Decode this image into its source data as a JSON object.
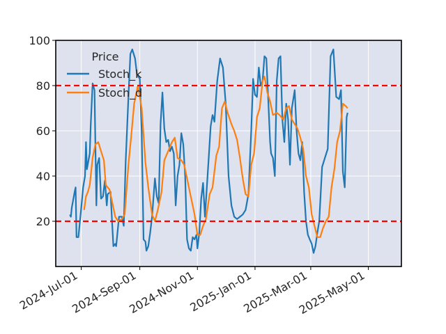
{
  "chart_data": {
    "type": "line",
    "title": "",
    "xlabel": "",
    "ylabel": "",
    "ylim": [
      0,
      100
    ],
    "xlim": [
      "2024-06-04",
      "2025-06-05"
    ],
    "yticks": [
      20,
      40,
      60,
      80,
      100
    ],
    "xticks": [
      {
        "date": "2024-07-01",
        "label": "2024-Jul-01"
      },
      {
        "date": "2024-09-01",
        "label": "2024-Sep-01"
      },
      {
        "date": "2024-11-01",
        "label": "2024-Nov-01"
      },
      {
        "date": "2025-01-01",
        "label": "2025-Jan-01"
      },
      {
        "date": "2025-03-01",
        "label": "2025-Mar-01"
      },
      {
        "date": "2025-05-01",
        "label": "2025-May-01"
      }
    ],
    "grid": true,
    "background": "#dde2ee",
    "legend": {
      "title": "Price",
      "position": "top-left"
    },
    "reference_lines": [
      {
        "y": 80,
        "color": "#ff0000",
        "style": "dashed"
      },
      {
        "y": 20,
        "color": "#ff0000",
        "style": "dashed"
      }
    ],
    "series": [
      {
        "name": "Stoch_k",
        "color": "#1f77b4",
        "points": [
          [
            "2024-06-19",
            23
          ],
          [
            "2024-06-20",
            22
          ],
          [
            "2024-06-21",
            26
          ],
          [
            "2024-06-24",
            33
          ],
          [
            "2024-06-25",
            35
          ],
          [
            "2024-06-26",
            13
          ],
          [
            "2024-06-28",
            13
          ],
          [
            "2024-07-01",
            26
          ],
          [
            "2024-07-03",
            35
          ],
          [
            "2024-07-05",
            40
          ],
          [
            "2024-07-06",
            55
          ],
          [
            "2024-07-07",
            43
          ],
          [
            "2024-07-10",
            50
          ],
          [
            "2024-07-11",
            62
          ],
          [
            "2024-07-13",
            81
          ],
          [
            "2024-07-15",
            78
          ],
          [
            "2024-07-17",
            27
          ],
          [
            "2024-07-18",
            45
          ],
          [
            "2024-07-20",
            48
          ],
          [
            "2024-07-22",
            30
          ],
          [
            "2024-07-24",
            31
          ],
          [
            "2024-07-26",
            38
          ],
          [
            "2024-07-28",
            27
          ],
          [
            "2024-07-29",
            32
          ],
          [
            "2024-08-01",
            33
          ],
          [
            "2024-08-03",
            17
          ],
          [
            "2024-08-04",
            9
          ],
          [
            "2024-08-06",
            10
          ],
          [
            "2024-08-07",
            9
          ],
          [
            "2024-08-10",
            22
          ],
          [
            "2024-08-13",
            22
          ],
          [
            "2024-08-15",
            18
          ],
          [
            "2024-08-17",
            46
          ],
          [
            "2024-08-20",
            75
          ],
          [
            "2024-08-22",
            94
          ],
          [
            "2024-08-24",
            96
          ],
          [
            "2024-08-27",
            92
          ],
          [
            "2024-08-29",
            85
          ],
          [
            "2024-09-01",
            83
          ],
          [
            "2024-09-03",
            60
          ],
          [
            "2024-09-05",
            12
          ],
          [
            "2024-09-07",
            11
          ],
          [
            "2024-09-08",
            7
          ],
          [
            "2024-09-10",
            9
          ],
          [
            "2024-09-12",
            15
          ],
          [
            "2024-09-14",
            22
          ],
          [
            "2024-09-17",
            39
          ],
          [
            "2024-09-19",
            31
          ],
          [
            "2024-09-21",
            28
          ],
          [
            "2024-09-23",
            63
          ],
          [
            "2024-09-25",
            77
          ],
          [
            "2024-09-27",
            61
          ],
          [
            "2024-09-29",
            55
          ],
          [
            "2024-10-01",
            56
          ],
          [
            "2024-10-03",
            51
          ],
          [
            "2024-10-05",
            53
          ],
          [
            "2024-10-07",
            50
          ],
          [
            "2024-10-09",
            27
          ],
          [
            "2024-10-11",
            40
          ],
          [
            "2024-10-13",
            45
          ],
          [
            "2024-10-15",
            59
          ],
          [
            "2024-10-17",
            54
          ],
          [
            "2024-10-19",
            40
          ],
          [
            "2024-10-21",
            12
          ],
          [
            "2024-10-23",
            8
          ],
          [
            "2024-10-25",
            7
          ],
          [
            "2024-10-27",
            13
          ],
          [
            "2024-10-29",
            12
          ],
          [
            "2024-10-31",
            14
          ],
          [
            "2024-11-01",
            8
          ],
          [
            "2024-11-03",
            15
          ],
          [
            "2024-11-05",
            30
          ],
          [
            "2024-11-07",
            37
          ],
          [
            "2024-11-09",
            22
          ],
          [
            "2024-11-11",
            35
          ],
          [
            "2024-11-13",
            48
          ],
          [
            "2024-11-15",
            62
          ],
          [
            "2024-11-17",
            67
          ],
          [
            "2024-11-19",
            64
          ],
          [
            "2024-11-22",
            82
          ],
          [
            "2024-11-25",
            92
          ],
          [
            "2024-11-28",
            88
          ],
          [
            "2024-12-01",
            72
          ],
          [
            "2024-12-04",
            40
          ],
          [
            "2024-12-07",
            27
          ],
          [
            "2024-12-10",
            22
          ],
          [
            "2024-12-13",
            21
          ],
          [
            "2024-12-16",
            22
          ],
          [
            "2024-12-19",
            23
          ],
          [
            "2024-12-22",
            25
          ],
          [
            "2024-12-25",
            32
          ],
          [
            "2024-12-28",
            60
          ],
          [
            "2024-12-30",
            83
          ],
          [
            "2025-01-01",
            76
          ],
          [
            "2025-01-03",
            75
          ],
          [
            "2025-01-05",
            88
          ],
          [
            "2025-01-07",
            80
          ],
          [
            "2025-01-09",
            82
          ],
          [
            "2025-01-11",
            93
          ],
          [
            "2025-01-13",
            92
          ],
          [
            "2025-01-15",
            74
          ],
          [
            "2025-01-17",
            55
          ],
          [
            "2025-01-18",
            50
          ],
          [
            "2025-01-20",
            48
          ],
          [
            "2025-01-22",
            40
          ],
          [
            "2025-01-24",
            82
          ],
          [
            "2025-01-26",
            92
          ],
          [
            "2025-01-28",
            93
          ],
          [
            "2025-01-30",
            65
          ],
          [
            "2025-02-01",
            55
          ],
          [
            "2025-02-03",
            72
          ],
          [
            "2025-02-05",
            65
          ],
          [
            "2025-02-07",
            45
          ],
          [
            "2025-02-09",
            70
          ],
          [
            "2025-02-12",
            78
          ],
          [
            "2025-02-14",
            60
          ],
          [
            "2025-02-16",
            50
          ],
          [
            "2025-02-18",
            47
          ],
          [
            "2025-02-20",
            55
          ],
          [
            "2025-02-22",
            33
          ],
          [
            "2025-02-24",
            20
          ],
          [
            "2025-02-26",
            14
          ],
          [
            "2025-02-28",
            12
          ],
          [
            "2025-03-02",
            10
          ],
          [
            "2025-03-04",
            6
          ],
          [
            "2025-03-06",
            9
          ],
          [
            "2025-03-08",
            15
          ],
          [
            "2025-03-10",
            20
          ],
          [
            "2025-03-13",
            44
          ],
          [
            "2025-03-16",
            48
          ],
          [
            "2025-03-19",
            52
          ],
          [
            "2025-03-22",
            93
          ],
          [
            "2025-03-25",
            96
          ],
          [
            "2025-03-28",
            75
          ],
          [
            "2025-03-31",
            74
          ],
          [
            "2025-04-02",
            78
          ],
          [
            "2025-04-04",
            42
          ],
          [
            "2025-04-06",
            35
          ],
          [
            "2025-04-08",
            66
          ],
          [
            "2025-04-09",
            68
          ]
        ]
      },
      {
        "name": "Stoch_d",
        "color": "#ff7f0e",
        "points": [
          [
            "2024-07-04",
            25
          ],
          [
            "2024-07-06",
            31
          ],
          [
            "2024-07-08",
            33
          ],
          [
            "2024-07-10",
            36
          ],
          [
            "2024-07-13",
            48
          ],
          [
            "2024-07-16",
            54
          ],
          [
            "2024-07-19",
            55
          ],
          [
            "2024-07-22",
            51
          ],
          [
            "2024-07-25",
            47
          ],
          [
            "2024-07-27",
            36
          ],
          [
            "2024-07-31",
            34
          ],
          [
            "2024-08-03",
            28
          ],
          [
            "2024-08-06",
            22
          ],
          [
            "2024-08-09",
            20
          ],
          [
            "2024-08-13",
            21
          ],
          [
            "2024-08-16",
            23
          ],
          [
            "2024-08-20",
            45
          ],
          [
            "2024-08-23",
            58
          ],
          [
            "2024-08-26",
            72
          ],
          [
            "2024-08-30",
            80
          ],
          [
            "2024-09-03",
            70
          ],
          [
            "2024-09-07",
            46
          ],
          [
            "2024-09-10",
            35
          ],
          [
            "2024-09-14",
            23
          ],
          [
            "2024-09-17",
            20
          ],
          [
            "2024-09-20",
            25
          ],
          [
            "2024-09-24",
            33
          ],
          [
            "2024-09-27",
            47
          ],
          [
            "2024-10-01",
            51
          ],
          [
            "2024-10-05",
            55
          ],
          [
            "2024-10-08",
            57
          ],
          [
            "2024-10-11",
            48
          ],
          [
            "2024-10-15",
            47
          ],
          [
            "2024-10-18",
            45
          ],
          [
            "2024-10-21",
            39
          ],
          [
            "2024-10-24",
            33
          ],
          [
            "2024-10-27",
            27
          ],
          [
            "2024-10-29",
            23
          ],
          [
            "2024-11-01",
            14
          ],
          [
            "2024-11-04",
            14
          ],
          [
            "2024-11-07",
            18
          ],
          [
            "2024-11-10",
            21
          ],
          [
            "2024-11-14",
            32
          ],
          [
            "2024-11-17",
            35
          ],
          [
            "2024-11-21",
            49
          ],
          [
            "2024-11-24",
            53
          ],
          [
            "2024-11-27",
            70
          ],
          [
            "2024-11-30",
            73
          ],
          [
            "2024-12-03",
            68
          ],
          [
            "2024-12-07",
            63
          ],
          [
            "2024-12-10",
            60
          ],
          [
            "2024-12-13",
            56
          ],
          [
            "2024-12-16",
            48
          ],
          [
            "2024-12-19",
            39
          ],
          [
            "2024-12-22",
            32
          ],
          [
            "2024-12-25",
            31
          ],
          [
            "2024-12-28",
            45
          ],
          [
            "2024-12-31",
            50
          ],
          [
            "2025-01-03",
            66
          ],
          [
            "2025-01-06",
            70
          ],
          [
            "2025-01-09",
            82
          ],
          [
            "2025-01-11",
            84
          ],
          [
            "2025-01-14",
            77
          ],
          [
            "2025-01-17",
            73
          ],
          [
            "2025-01-20",
            67
          ],
          [
            "2025-01-24",
            68
          ],
          [
            "2025-01-27",
            67
          ],
          [
            "2025-01-31",
            65
          ],
          [
            "2025-02-03",
            70
          ],
          [
            "2025-02-06",
            71
          ],
          [
            "2025-02-09",
            65
          ],
          [
            "2025-02-12",
            63
          ],
          [
            "2025-02-15",
            61
          ],
          [
            "2025-02-18",
            57
          ],
          [
            "2025-02-21",
            52
          ],
          [
            "2025-02-24",
            40
          ],
          [
            "2025-02-27",
            35
          ],
          [
            "2025-03-02",
            23
          ],
          [
            "2025-03-05",
            18
          ],
          [
            "2025-03-08",
            13
          ],
          [
            "2025-03-11",
            13
          ],
          [
            "2025-03-14",
            17
          ],
          [
            "2025-03-17",
            20
          ],
          [
            "2025-03-20",
            22
          ],
          [
            "2025-03-23",
            35
          ],
          [
            "2025-03-26",
            43
          ],
          [
            "2025-03-29",
            55
          ],
          [
            "2025-04-01",
            60
          ],
          [
            "2025-04-04",
            72
          ],
          [
            "2025-04-07",
            71
          ],
          [
            "2025-04-09",
            70
          ]
        ]
      }
    ]
  }
}
